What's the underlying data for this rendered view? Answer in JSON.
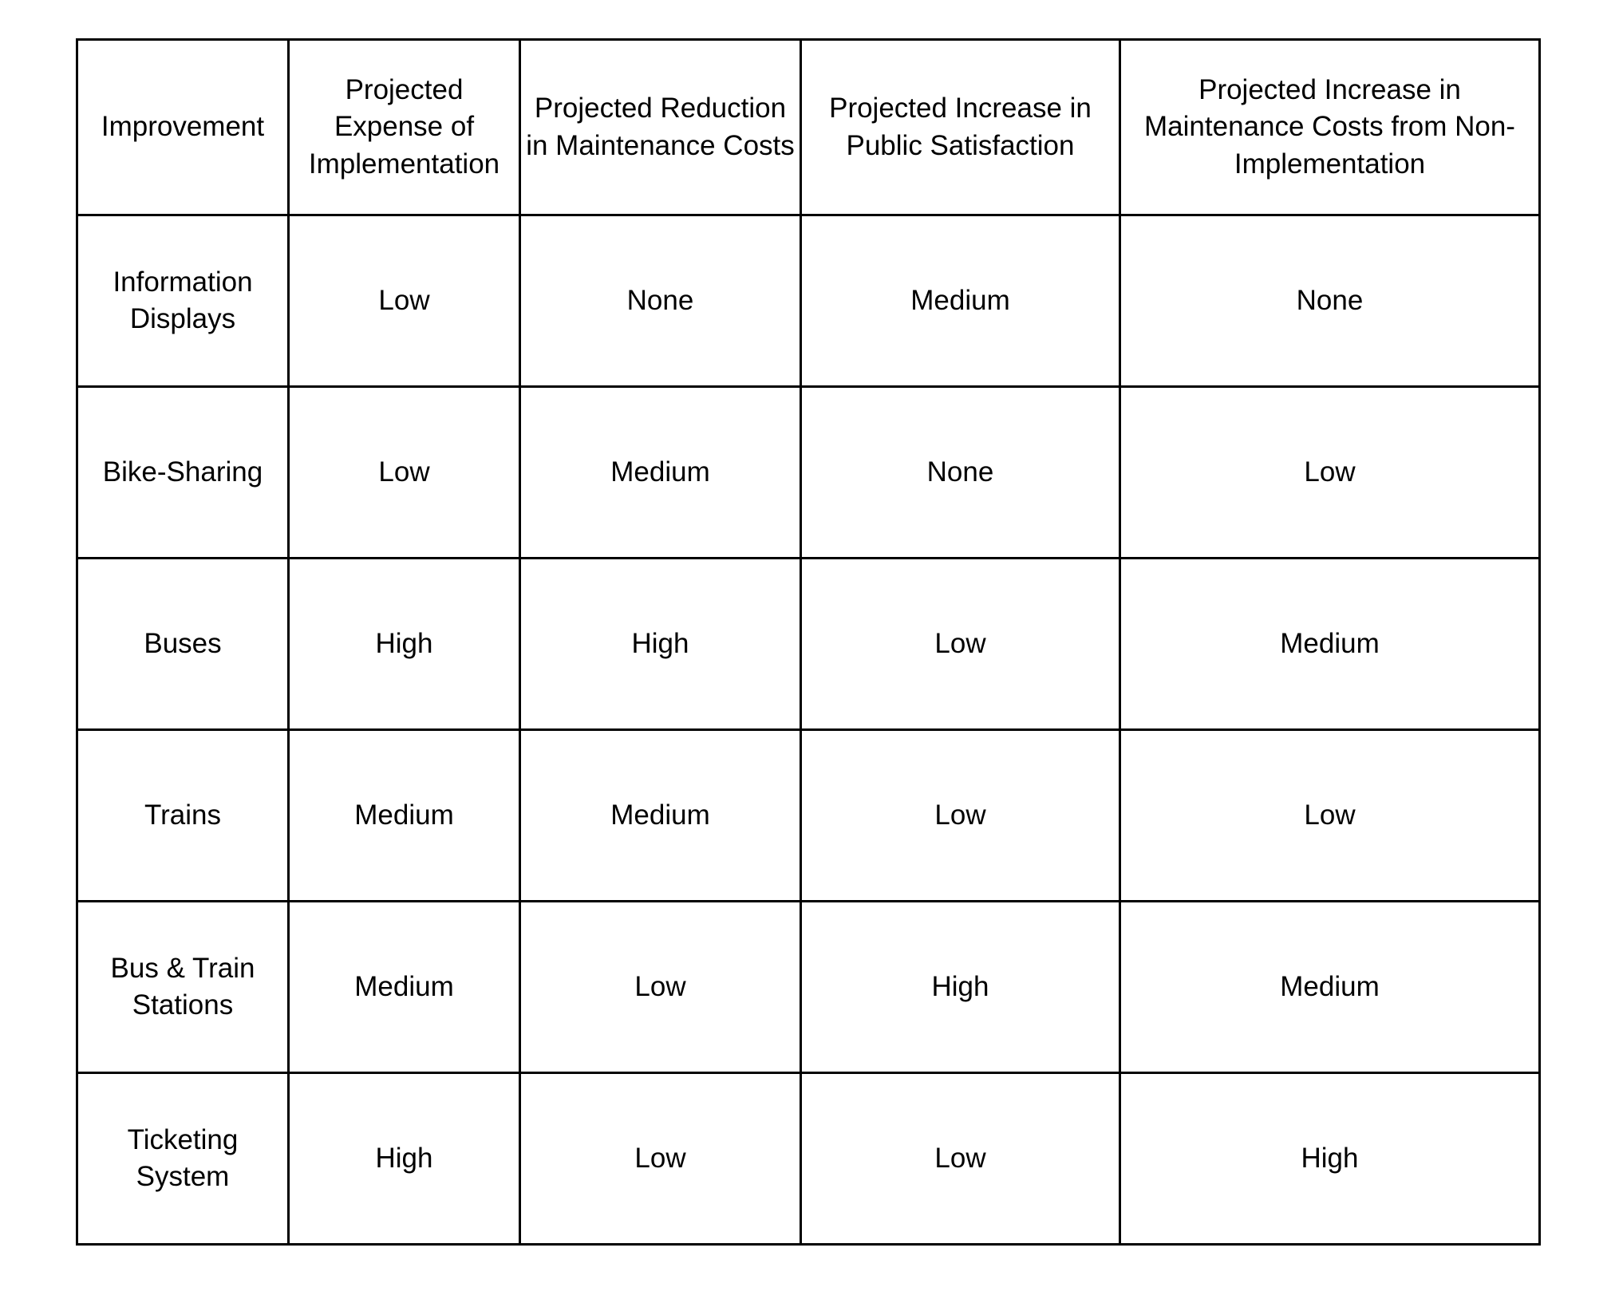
{
  "colors": {
    "background": "#ffffff",
    "border": "#000000",
    "text": "#000000"
  },
  "chart_data": {
    "type": "table",
    "title": "",
    "legend": "none",
    "grid": "full-borders",
    "columns": [
      "Improvement",
      "Projected Expense of Implementation",
      "Projected Reduction in Maintenance Costs",
      "Projected Increase in Public Satisfaction",
      "Projected Increase in Maintenance Costs from Non-Implementation"
    ],
    "rows": [
      [
        "Information Displays",
        "Low",
        "None",
        "Medium",
        "None"
      ],
      [
        "Bike-Sharing",
        "Low",
        "Medium",
        "None",
        "Low"
      ],
      [
        "Buses",
        "High",
        "High",
        "Low",
        "Medium"
      ],
      [
        "Trains",
        "Medium",
        "Medium",
        "Low",
        "Low"
      ],
      [
        "Bus & Train Stations",
        "Medium",
        "Low",
        "High",
        "Medium"
      ],
      [
        "Ticketing System",
        "High",
        "Low",
        "Low",
        "High"
      ]
    ]
  }
}
